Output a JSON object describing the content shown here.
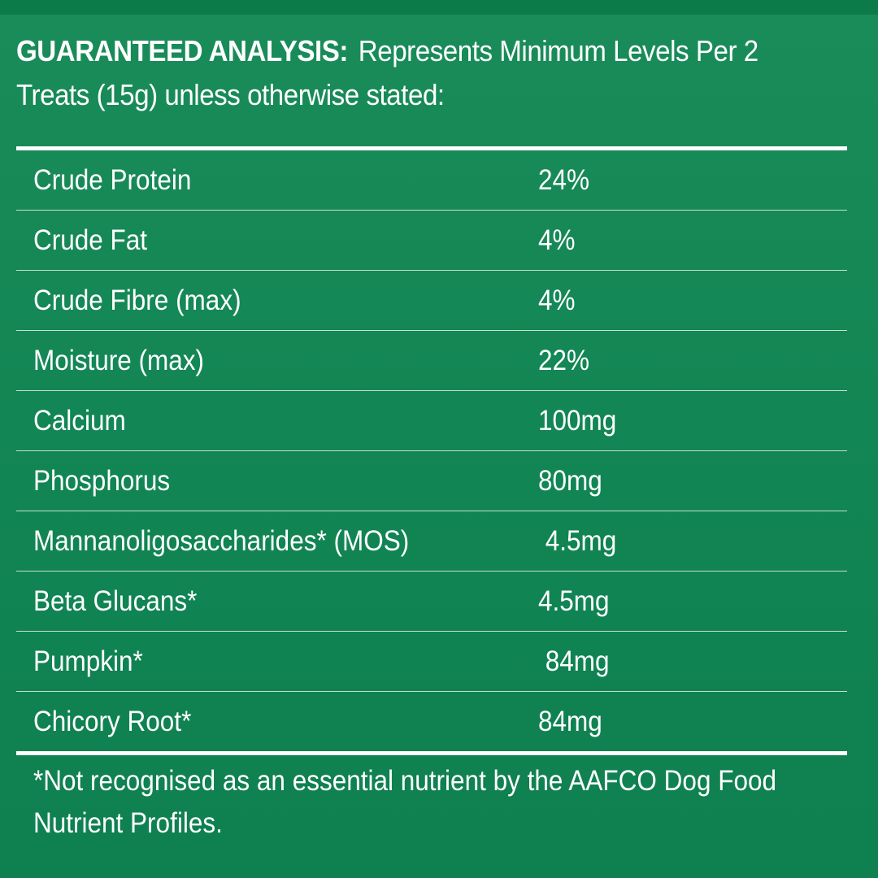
{
  "header": {
    "title_bold": "GUARANTEED ANALYSIS:",
    "title_rest": "Represents Minimum Levels Per 2",
    "line2": "Treats (15g) unless otherwise stated:"
  },
  "table": {
    "rows": [
      {
        "label": "Crude Protein",
        "value": "24%"
      },
      {
        "label": "Crude Fat",
        "value": "4%"
      },
      {
        "label": "Crude Fibre (max)",
        "value": "4%"
      },
      {
        "label": "Moisture (max)",
        "value": "22%"
      },
      {
        "label": "Calcium",
        "value": "100mg"
      },
      {
        "label": "Phosphorus",
        "value": "80mg"
      },
      {
        "label": "Mannanoligosaccharides* (MOS)",
        "value": " 4.5mg"
      },
      {
        "label": "Beta Glucans*",
        "value": "4.5mg"
      },
      {
        "label": "Pumpkin*",
        "value": " 84mg"
      },
      {
        "label": "Chicory Root*",
        "value": "84mg"
      }
    ]
  },
  "footnote": {
    "line1": "*Not recognised as an essential nutrient by the AAFCO Dog Food",
    "line2": "Nutrient Profiles."
  },
  "colors": {
    "background": "#138a57",
    "text": "#ffffff"
  }
}
